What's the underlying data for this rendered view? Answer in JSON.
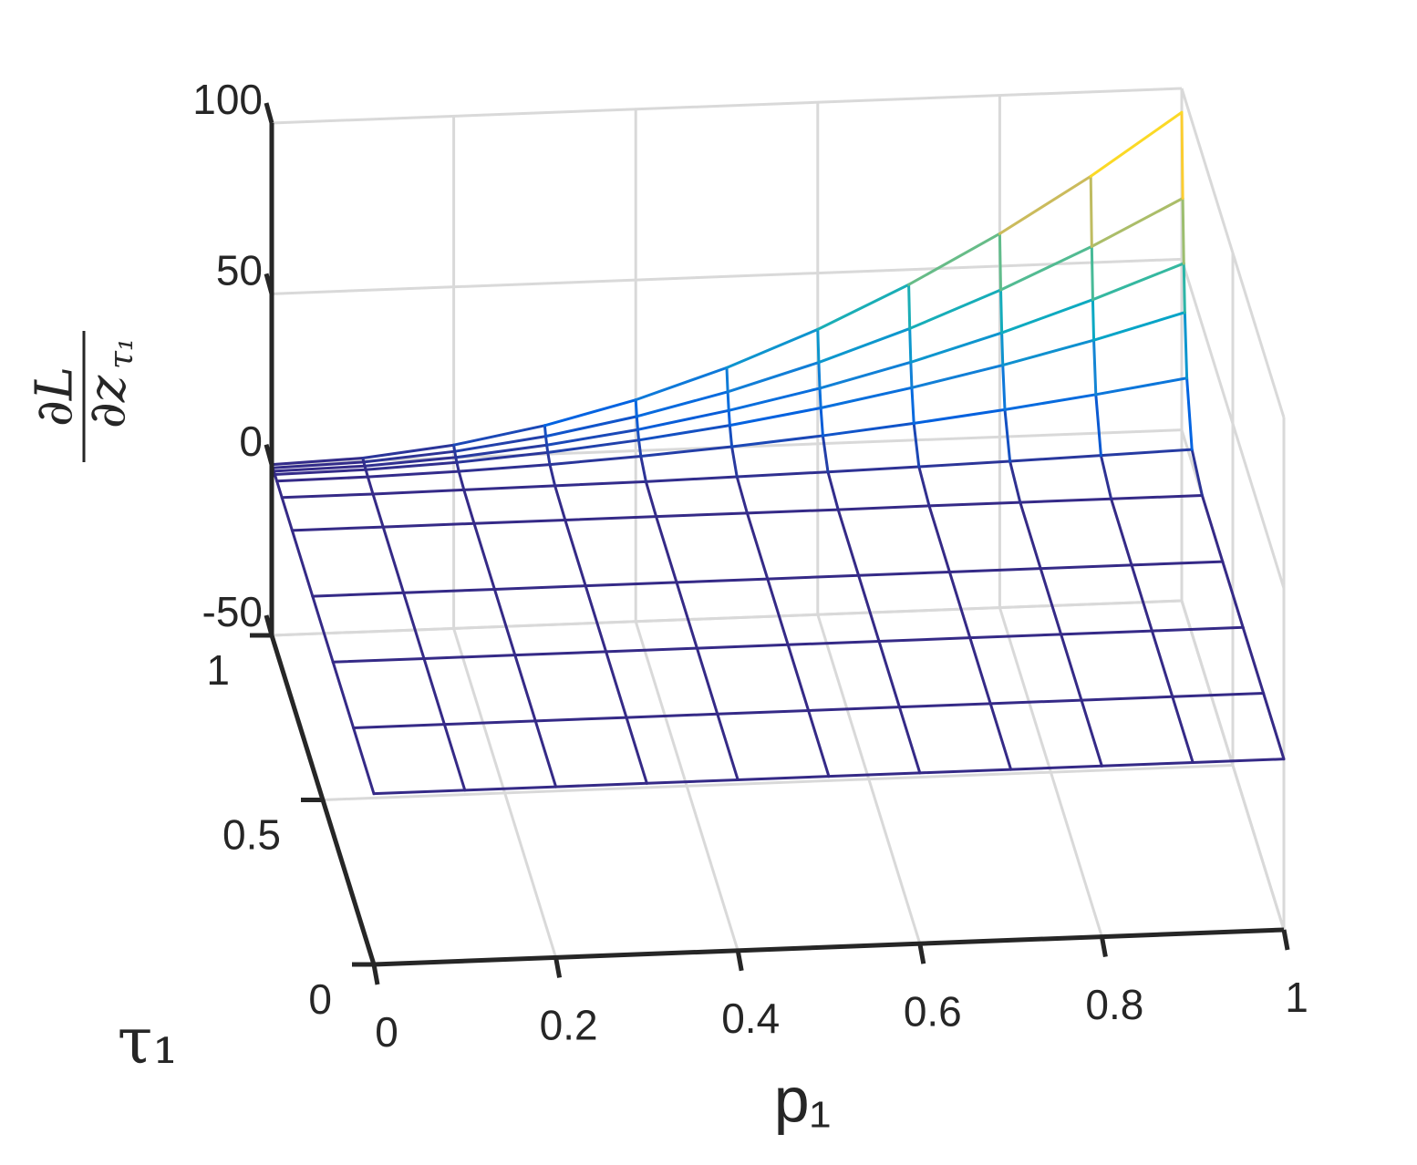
{
  "chart_data": {
    "type": "mesh",
    "xlabel": "p₁",
    "ylabel": "τ₁",
    "zlabel": {
      "numerator": "∂L",
      "denominator": "∂z",
      "denominator_sub": "τ₁"
    },
    "x": [
      0,
      0.1,
      0.2,
      0.3,
      0.4,
      0.5,
      0.6,
      0.7,
      0.8,
      0.9,
      1
    ],
    "y": [
      0,
      0.2,
      0.4,
      0.6,
      0.8,
      0.9,
      0.95,
      0.97,
      0.98,
      0.99,
      1
    ],
    "z": [
      [
        0,
        0,
        0,
        0,
        0,
        0,
        0,
        0,
        0,
        0,
        0
      ],
      [
        0,
        0,
        0,
        0,
        0,
        0,
        0,
        0,
        0,
        0,
        0
      ],
      [
        0,
        0,
        0,
        0,
        0,
        0,
        0,
        0,
        0,
        0,
        0
      ],
      [
        0,
        0,
        0,
        0,
        0,
        0,
        0,
        0,
        0,
        0,
        0
      ],
      [
        0,
        0,
        0,
        0,
        0,
        0,
        0,
        0.1,
        0.1,
        0.1,
        0.1
      ],
      [
        0,
        0,
        0.2,
        0.4,
        0.6,
        1.0,
        1.4,
        1.9,
        2.5,
        3.2,
        3.9
      ],
      [
        0,
        0.2,
        0.8,
        1.8,
        3.2,
        5.0,
        7.2,
        9.8,
        12.8,
        16.2,
        20.0
      ],
      [
        0,
        0.4,
        1.5,
        3.4,
        6.0,
        9.3,
        13.4,
        18.3,
        23.9,
        30.2,
        37.3
      ],
      [
        0,
        0.5,
        2.0,
        4.6,
        8.1,
        12.7,
        18.2,
        24.8,
        32.4,
        41.1,
        50.7
      ],
      [
        0,
        0.7,
        2.8,
        6.2,
        11.0,
        17.2,
        24.8,
        33.7,
        44.0,
        55.7,
        68.8
      ],
      [
        0,
        0.9,
        3.7,
        8.4,
        14.9,
        23.3,
        33.5,
        45.6,
        59.5,
        75.3,
        93.0
      ]
    ],
    "xlim": [
      0,
      1
    ],
    "xticks": [
      0,
      0.2,
      0.4,
      0.6,
      0.8,
      1
    ],
    "ylim": [
      0,
      1
    ],
    "yticks": [
      0,
      0.5,
      1
    ],
    "zlim": [
      -50,
      100
    ],
    "zticks": [
      -50,
      0,
      50,
      100
    ],
    "grid": true,
    "colormap": [
      "#352a87",
      "#0363e1",
      "#1485d4",
      "#06a7c6",
      "#38b99e",
      "#92bf73",
      "#d9ba56",
      "#fcce2e",
      "#f9fb0e"
    ]
  }
}
